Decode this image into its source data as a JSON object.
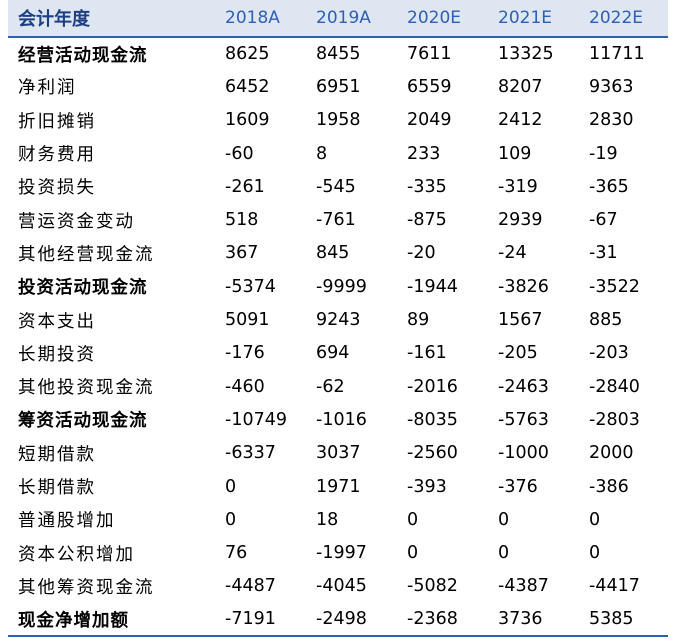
{
  "header": {
    "label": "会计年度",
    "years": [
      "2018A",
      "2019A",
      "2020E",
      "2021E",
      "2022E"
    ]
  },
  "rows": [
    {
      "label": "经营活动现金流",
      "bold": true,
      "values": [
        "8625",
        "8455",
        "7611",
        "13325",
        "11711"
      ]
    },
    {
      "label": "净利润",
      "bold": false,
      "values": [
        "6452",
        "6951",
        "6559",
        "8207",
        "9363"
      ]
    },
    {
      "label": "折旧摊销",
      "bold": false,
      "values": [
        "1609",
        "1958",
        "2049",
        "2412",
        "2830"
      ]
    },
    {
      "label": "财务费用",
      "bold": false,
      "values": [
        "-60",
        "8",
        "233",
        "109",
        "-19"
      ]
    },
    {
      "label": "投资损失",
      "bold": false,
      "values": [
        "-261",
        "-545",
        "-335",
        "-319",
        "-365"
      ]
    },
    {
      "label": "营运资金变动",
      "bold": false,
      "values": [
        "518",
        "-761",
        "-875",
        "2939",
        "-67"
      ]
    },
    {
      "label": "其他经营现金流",
      "bold": false,
      "values": [
        "367",
        "845",
        "-20",
        "-24",
        "-31"
      ]
    },
    {
      "label": "投资活动现金流",
      "bold": true,
      "values": [
        "-5374",
        "-9999",
        "-1944",
        "-3826",
        "-3522"
      ]
    },
    {
      "label": "资本支出",
      "bold": false,
      "values": [
        "5091",
        "9243",
        "89",
        "1567",
        "885"
      ]
    },
    {
      "label": "长期投资",
      "bold": false,
      "values": [
        "-176",
        "694",
        "-161",
        "-205",
        "-203"
      ]
    },
    {
      "label": "其他投资现金流",
      "bold": false,
      "values": [
        "-460",
        "-62",
        "-2016",
        "-2463",
        "-2840"
      ]
    },
    {
      "label": "筹资活动现金流",
      "bold": true,
      "values": [
        "-10749",
        "-1016",
        "-8035",
        "-5763",
        "-2803"
      ]
    },
    {
      "label": "短期借款",
      "bold": false,
      "values": [
        "-6337",
        "3037",
        "-2560",
        "-1000",
        "2000"
      ]
    },
    {
      "label": "长期借款",
      "bold": false,
      "values": [
        "0",
        "1971",
        "-393",
        "-376",
        "-386"
      ]
    },
    {
      "label": "普通股增加",
      "bold": false,
      "values": [
        "0",
        "18",
        "0",
        "0",
        "0"
      ]
    },
    {
      "label": "资本公积增加",
      "bold": false,
      "values": [
        "76",
        "-1997",
        "0",
        "0",
        "0"
      ]
    },
    {
      "label": "其他筹资现金流",
      "bold": false,
      "values": [
        "-4487",
        "-4045",
        "-5082",
        "-4387",
        "-4417"
      ]
    },
    {
      "label": "现金净增加额",
      "bold": true,
      "values": [
        "-7191",
        "-2498",
        "-2368",
        "3736",
        "5385"
      ]
    }
  ]
}
